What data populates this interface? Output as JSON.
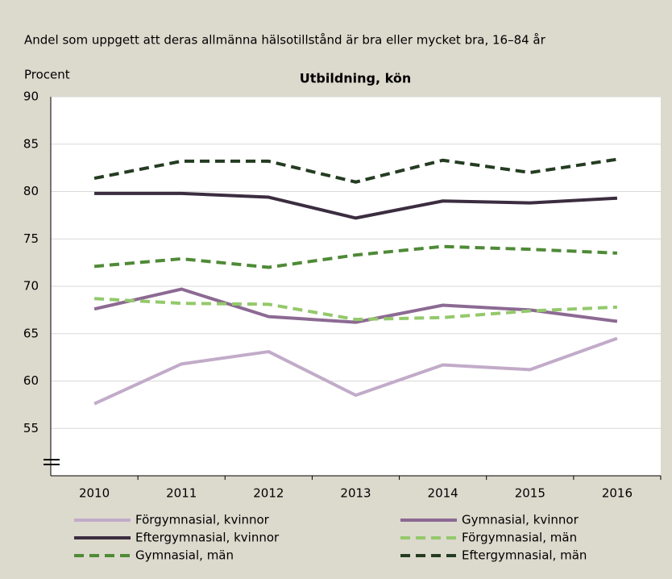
{
  "chart_data": {
    "type": "line",
    "subtitle": "Andel som uppgett att deras allmänna hälsotillstånd är bra eller mycket bra, 16–84 år",
    "title": "Utbildning, kön",
    "y_label": "Procent",
    "categories": [
      "2010",
      "2011",
      "2012",
      "2013",
      "2014",
      "2015",
      "2016"
    ],
    "series": [
      {
        "name": "Förgymnasial, kvinnor",
        "color": "#c2abc9",
        "dashed": false,
        "values": [
          57.6,
          61.8,
          63.1,
          58.5,
          61.7,
          61.2,
          64.5
        ]
      },
      {
        "name": "Gymnasial, kvinnor",
        "color": "#8c6a93",
        "dashed": false,
        "values": [
          67.6,
          69.7,
          66.8,
          66.2,
          68.0,
          67.5,
          66.3
        ]
      },
      {
        "name": "Eftergymnasial, kvinnor",
        "color": "#3b2d40",
        "dashed": false,
        "values": [
          79.8,
          79.8,
          79.4,
          77.2,
          79.0,
          78.8,
          79.3
        ]
      },
      {
        "name": "Förgymnasial, män",
        "color": "#93c96b",
        "dashed": true,
        "values": [
          68.7,
          68.2,
          68.1,
          66.5,
          66.7,
          67.4,
          67.8
        ]
      },
      {
        "name": "Gymnasial, män",
        "color": "#4f8a36",
        "dashed": true,
        "values": [
          72.1,
          72.9,
          72.0,
          73.3,
          74.2,
          73.9,
          73.5
        ]
      },
      {
        "name": "Eftergymnasial, män",
        "color": "#243c21",
        "dashed": true,
        "values": [
          81.4,
          83.2,
          83.2,
          81.0,
          83.3,
          82.0,
          83.4
        ]
      }
    ],
    "ylim": [
      50,
      90
    ],
    "yticks": [
      55,
      60,
      65,
      70,
      75,
      80,
      85,
      90
    ],
    "grid": true
  }
}
